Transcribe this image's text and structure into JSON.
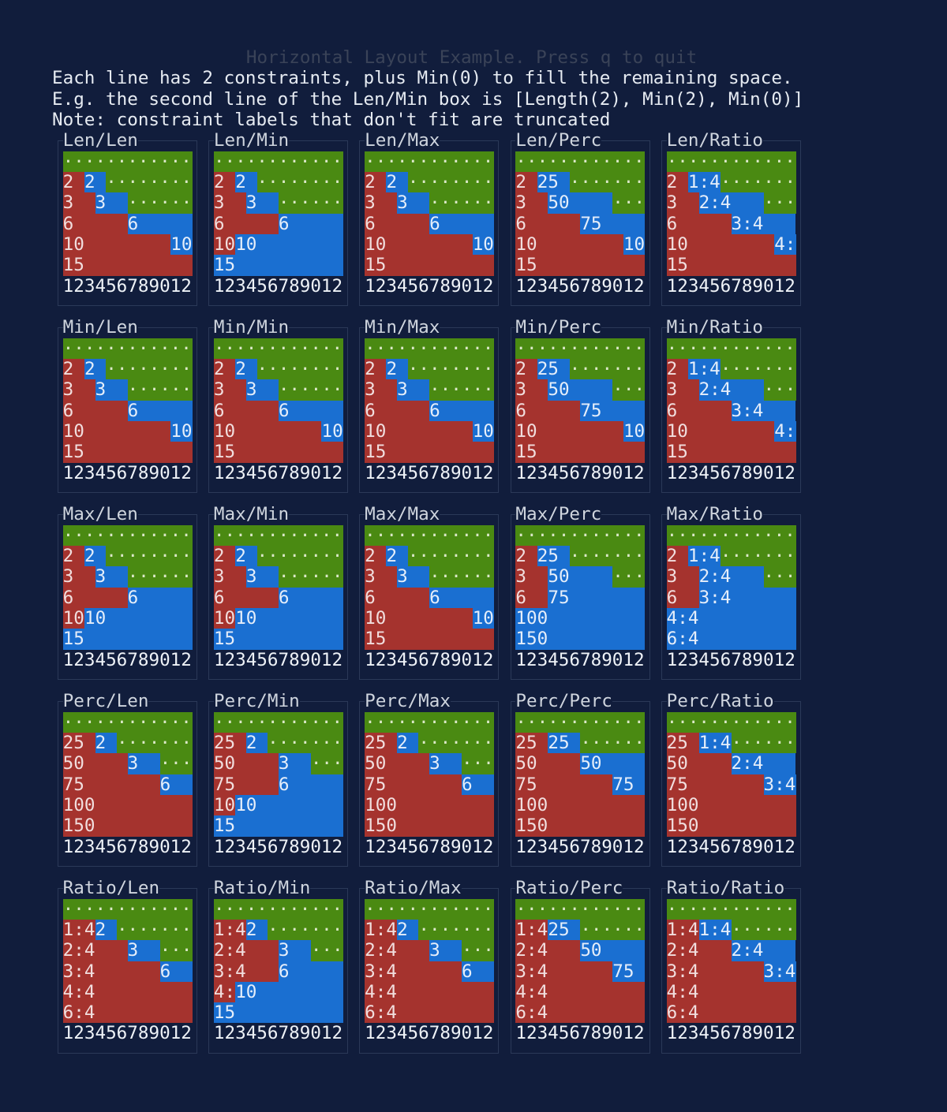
{
  "header": {
    "title": "Horizontal Layout Example. Press q to quit",
    "lines": [
      "Each line has 2 constraints, plus Min(0) to fill the remaining space.",
      "E.g. the second line of the Len/Min box is [Length(2), Min(2), Min(0)]",
      "Note: constraint labels that don't fit are truncated"
    ]
  },
  "colors": {
    "background": "#111d3c",
    "first": "#a5332e",
    "second": "#1a6fd1",
    "fill": "#4a8a12"
  },
  "fill_char": "·",
  "ruler": "123456789012",
  "labels": {
    "Len": [
      "2",
      "3",
      "6",
      "10",
      "15"
    ],
    "Min": [
      "2",
      "3",
      "6",
      "10",
      "15"
    ],
    "Max": [
      "2",
      "3",
      "6",
      "10",
      "15"
    ],
    "Perc": [
      "25",
      "50",
      "75",
      "100",
      "150"
    ],
    "Ratio": [
      "1:4",
      "2:4",
      "3:4",
      "4:4",
      "6:4"
    ]
  },
  "boxes": [
    {
      "title": "Len/Len",
      "first": "Len",
      "second": "Len",
      "widths": [
        [
          0,
          0
        ],
        [
          2,
          2
        ],
        [
          3,
          3
        ],
        [
          6,
          6
        ],
        [
          10,
          2
        ],
        [
          12,
          0
        ]
      ]
    },
    {
      "title": "Len/Min",
      "first": "Len",
      "second": "Min",
      "widths": [
        [
          0,
          0
        ],
        [
          2,
          2
        ],
        [
          3,
          3
        ],
        [
          6,
          6
        ],
        [
          2,
          10
        ],
        [
          0,
          12
        ]
      ]
    },
    {
      "title": "Len/Max",
      "first": "Len",
      "second": "Max",
      "widths": [
        [
          0,
          0
        ],
        [
          2,
          2
        ],
        [
          3,
          3
        ],
        [
          6,
          6
        ],
        [
          10,
          2
        ],
        [
          12,
          0
        ]
      ]
    },
    {
      "title": "Len/Perc",
      "first": "Len",
      "second": "Perc",
      "widths": [
        [
          0,
          0
        ],
        [
          2,
          3
        ],
        [
          3,
          6
        ],
        [
          6,
          6
        ],
        [
          10,
          2
        ],
        [
          12,
          0
        ]
      ]
    },
    {
      "title": "Len/Ratio",
      "first": "Len",
      "second": "Ratio",
      "widths": [
        [
          0,
          0
        ],
        [
          2,
          3
        ],
        [
          3,
          6
        ],
        [
          6,
          6
        ],
        [
          10,
          2
        ],
        [
          12,
          0
        ]
      ]
    },
    {
      "title": "Min/Len",
      "first": "Min",
      "second": "Len",
      "widths": [
        [
          0,
          0
        ],
        [
          2,
          2
        ],
        [
          3,
          3
        ],
        [
          6,
          6
        ],
        [
          10,
          2
        ],
        [
          12,
          0
        ]
      ]
    },
    {
      "title": "Min/Min",
      "first": "Min",
      "second": "Min",
      "widths": [
        [
          0,
          0
        ],
        [
          2,
          2
        ],
        [
          3,
          3
        ],
        [
          6,
          6
        ],
        [
          10,
          2
        ],
        [
          12,
          0
        ]
      ]
    },
    {
      "title": "Min/Max",
      "first": "Min",
      "second": "Max",
      "widths": [
        [
          0,
          0
        ],
        [
          2,
          2
        ],
        [
          3,
          3
        ],
        [
          6,
          6
        ],
        [
          10,
          2
        ],
        [
          12,
          0
        ]
      ]
    },
    {
      "title": "Min/Perc",
      "first": "Min",
      "second": "Perc",
      "widths": [
        [
          0,
          0
        ],
        [
          2,
          3
        ],
        [
          3,
          6
        ],
        [
          6,
          6
        ],
        [
          10,
          2
        ],
        [
          12,
          0
        ]
      ]
    },
    {
      "title": "Min/Ratio",
      "first": "Min",
      "second": "Ratio",
      "widths": [
        [
          0,
          0
        ],
        [
          2,
          3
        ],
        [
          3,
          6
        ],
        [
          6,
          6
        ],
        [
          10,
          2
        ],
        [
          12,
          0
        ]
      ]
    },
    {
      "title": "Max/Len",
      "first": "Max",
      "second": "Len",
      "widths": [
        [
          0,
          0
        ],
        [
          2,
          2
        ],
        [
          3,
          3
        ],
        [
          6,
          6
        ],
        [
          2,
          10
        ],
        [
          0,
          12
        ]
      ]
    },
    {
      "title": "Max/Min",
      "first": "Max",
      "second": "Min",
      "widths": [
        [
          0,
          0
        ],
        [
          2,
          2
        ],
        [
          3,
          3
        ],
        [
          6,
          6
        ],
        [
          2,
          10
        ],
        [
          0,
          12
        ]
      ]
    },
    {
      "title": "Max/Max",
      "first": "Max",
      "second": "Max",
      "widths": [
        [
          0,
          0
        ],
        [
          2,
          2
        ],
        [
          3,
          3
        ],
        [
          6,
          6
        ],
        [
          10,
          2
        ],
        [
          12,
          0
        ]
      ]
    },
    {
      "title": "Max/Perc",
      "first": "Max",
      "second": "Perc",
      "widths": [
        [
          0,
          0
        ],
        [
          2,
          3
        ],
        [
          3,
          6
        ],
        [
          3,
          9
        ],
        [
          0,
          12
        ],
        [
          0,
          12
        ]
      ]
    },
    {
      "title": "Max/Ratio",
      "first": "Max",
      "second": "Ratio",
      "widths": [
        [
          0,
          0
        ],
        [
          2,
          3
        ],
        [
          3,
          6
        ],
        [
          3,
          9
        ],
        [
          0,
          12
        ],
        [
          0,
          12
        ]
      ]
    },
    {
      "title": "Perc/Len",
      "first": "Perc",
      "second": "Len",
      "widths": [
        [
          0,
          0
        ],
        [
          3,
          2
        ],
        [
          6,
          3
        ],
        [
          9,
          3
        ],
        [
          12,
          0
        ],
        [
          12,
          0
        ]
      ]
    },
    {
      "title": "Perc/Min",
      "first": "Perc",
      "second": "Min",
      "widths": [
        [
          0,
          0
        ],
        [
          3,
          2
        ],
        [
          6,
          3
        ],
        [
          6,
          6
        ],
        [
          2,
          10
        ],
        [
          0,
          12
        ]
      ]
    },
    {
      "title": "Perc/Max",
      "first": "Perc",
      "second": "Max",
      "widths": [
        [
          0,
          0
        ],
        [
          3,
          2
        ],
        [
          6,
          3
        ],
        [
          9,
          3
        ],
        [
          12,
          0
        ],
        [
          12,
          0
        ]
      ]
    },
    {
      "title": "Perc/Perc",
      "first": "Perc",
      "second": "Perc",
      "widths": [
        [
          0,
          0
        ],
        [
          3,
          3
        ],
        [
          6,
          6
        ],
        [
          9,
          3
        ],
        [
          12,
          0
        ],
        [
          12,
          0
        ]
      ]
    },
    {
      "title": "Perc/Ratio",
      "first": "Perc",
      "second": "Ratio",
      "widths": [
        [
          0,
          0
        ],
        [
          3,
          3
        ],
        [
          6,
          6
        ],
        [
          9,
          3
        ],
        [
          12,
          0
        ],
        [
          12,
          0
        ]
      ]
    },
    {
      "title": "Ratio/Len",
      "first": "Ratio",
      "second": "Len",
      "widths": [
        [
          0,
          0
        ],
        [
          3,
          2
        ],
        [
          6,
          3
        ],
        [
          9,
          3
        ],
        [
          12,
          0
        ],
        [
          12,
          0
        ]
      ]
    },
    {
      "title": "Ratio/Min",
      "first": "Ratio",
      "second": "Min",
      "widths": [
        [
          0,
          0
        ],
        [
          3,
          2
        ],
        [
          6,
          3
        ],
        [
          6,
          6
        ],
        [
          2,
          10
        ],
        [
          0,
          12
        ]
      ]
    },
    {
      "title": "Ratio/Max",
      "first": "Ratio",
      "second": "Max",
      "widths": [
        [
          0,
          0
        ],
        [
          3,
          2
        ],
        [
          6,
          3
        ],
        [
          9,
          3
        ],
        [
          12,
          0
        ],
        [
          12,
          0
        ]
      ]
    },
    {
      "title": "Ratio/Perc",
      "first": "Ratio",
      "second": "Perc",
      "widths": [
        [
          0,
          0
        ],
        [
          3,
          3
        ],
        [
          6,
          6
        ],
        [
          9,
          3
        ],
        [
          12,
          0
        ],
        [
          12,
          0
        ]
      ]
    },
    {
      "title": "Ratio/Ratio",
      "first": "Ratio",
      "second": "Ratio",
      "widths": [
        [
          0,
          0
        ],
        [
          3,
          3
        ],
        [
          6,
          6
        ],
        [
          9,
          3
        ],
        [
          12,
          0
        ],
        [
          12,
          0
        ]
      ]
    }
  ]
}
